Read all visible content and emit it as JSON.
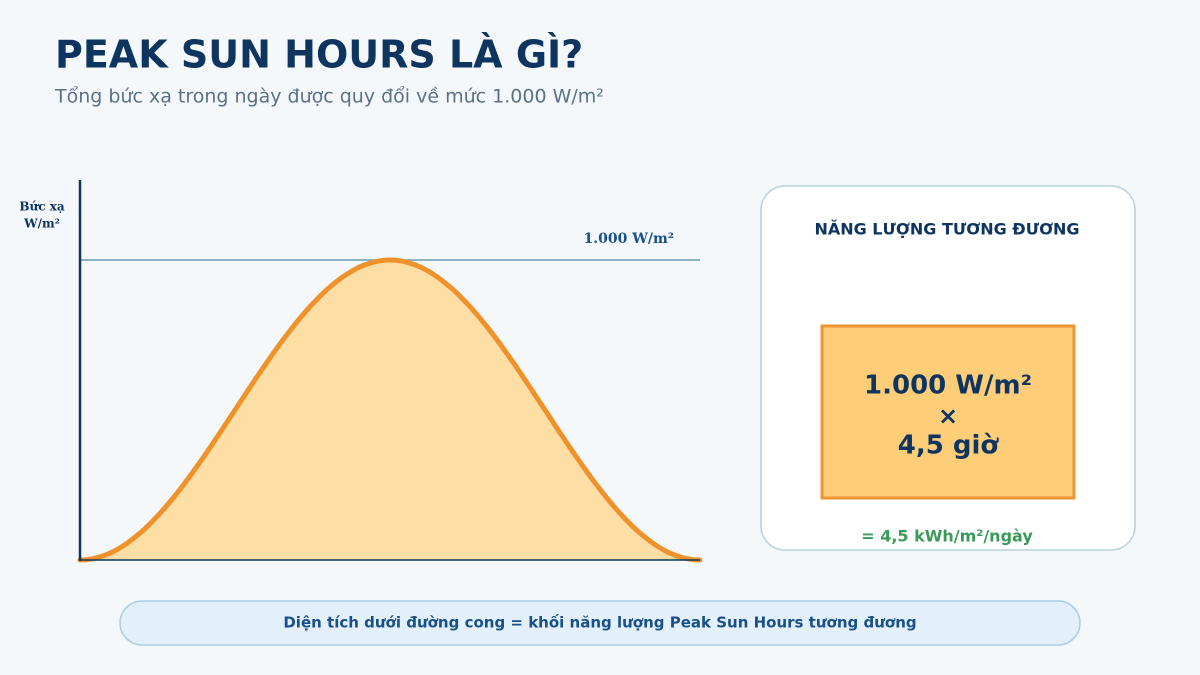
{
  "header": {
    "title": "PEAK SUN HOURS LÀ GÌ?",
    "subtitle": "Tổng bức xạ trong ngày được quy đổi về mức 1.000 W/m²"
  },
  "curve": {
    "axis_label": [
      "Bức xạ",
      "W/m²"
    ],
    "reference_label": "1.000 W/m²"
  },
  "panel": {
    "title": "NĂNG LƯỢNG TƯƠNG ĐƯƠNG",
    "box_lines": [
      "1.000 W/m²",
      "×",
      "4,5 giờ"
    ],
    "result": "= 4,5 kWh/m²/ngày"
  },
  "footer": {
    "note": "Diện tích dưới đường cong = khối năng lượng Peak Sun Hours tương đương"
  }
}
